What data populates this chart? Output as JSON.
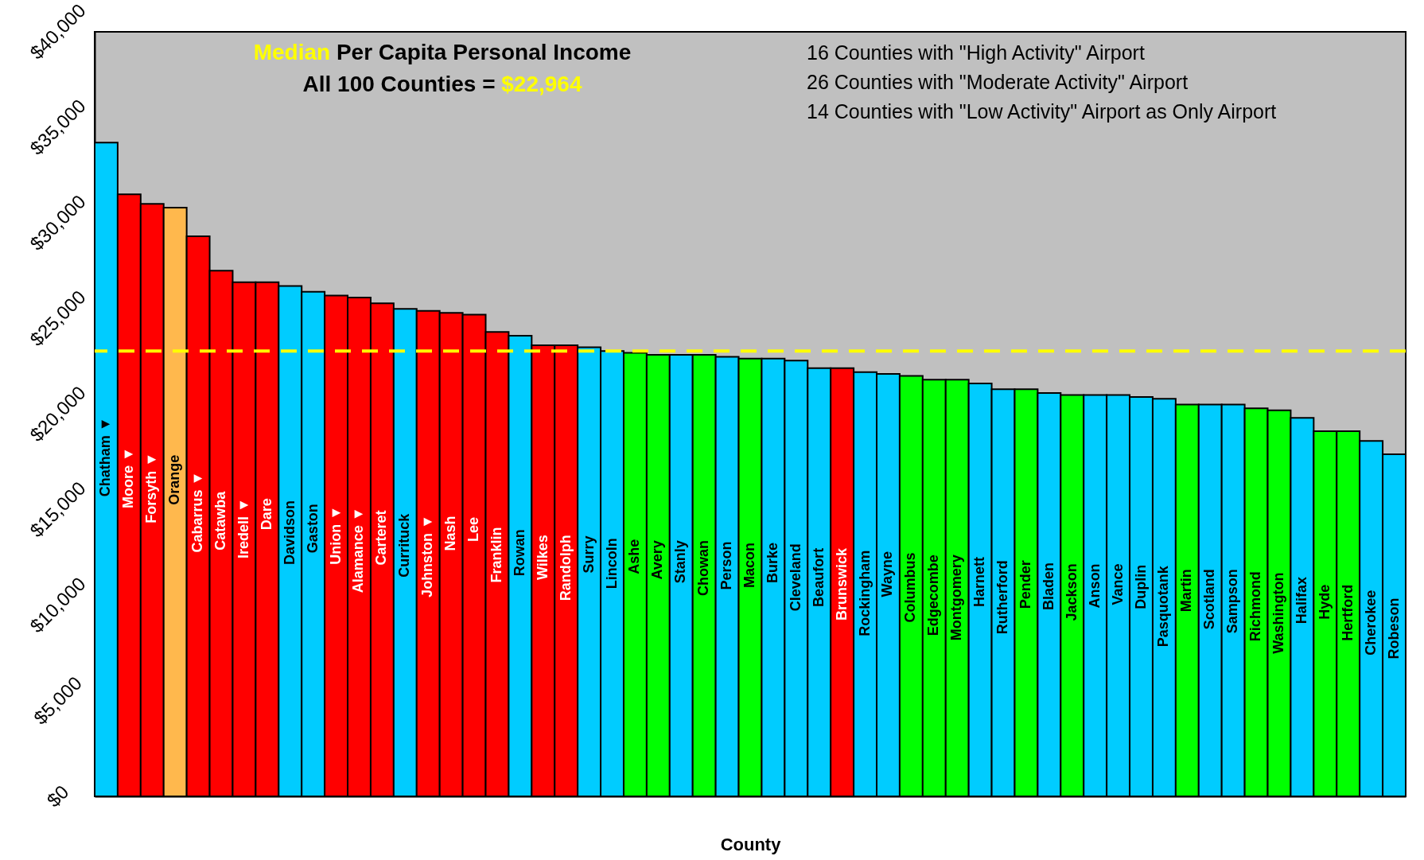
{
  "chart_data": {
    "type": "bar",
    "title": "Median Per Capita Personal Income",
    "subtitle": "All 100 Counties = $22,964",
    "xlabel": "County",
    "annotations": [
      "16 Counties with \"High Activity\" Airport",
      "26 Counties with \"Moderate Activity\" Airport",
      "14 Counties with \"Low Activity\" Airport as Only Airport"
    ],
    "categories": [
      "Chatham ▼",
      "Moore ▼",
      "Forsyth ▼",
      "Orange",
      "Cabarrus ▼",
      "Catawba",
      "Iredell ▼",
      "Dare",
      "Davidson",
      "Gaston",
      "Union ▼",
      "Alamance ▼",
      "Carteret",
      "Currituck",
      "Johnston ▼",
      "Nash",
      "Lee",
      "Franklin",
      "Rowan",
      "Wilkes",
      "Randolph",
      "Surry",
      "Lincoln",
      "Ashe",
      "Avery",
      "Stanly",
      "Chowan",
      "Person",
      "Macon",
      "Burke",
      "Cleveland",
      "Beaufort",
      "Brunswick",
      "Rockingham",
      "Wayne",
      "Columbus",
      "Edgecombe",
      "Montgomery",
      "Harnett",
      "Rutherford",
      "Pender",
      "Bladen",
      "Jackson",
      "Anson",
      "Vance",
      "Duplin",
      "Pasquotank",
      "Martin",
      "Scotland",
      "Sampson",
      "Richmond",
      "Washington",
      "Halifax",
      "Hyde",
      "Hertford",
      "Cherokee",
      "Robeson"
    ],
    "values": [
      34200,
      31500,
      31000,
      30800,
      29300,
      27500,
      26900,
      26900,
      26700,
      26400,
      26200,
      26100,
      25800,
      25500,
      25400,
      25300,
      25200,
      24300,
      24100,
      23600,
      23600,
      23500,
      23300,
      23200,
      23100,
      23100,
      23100,
      23000,
      22900,
      22900,
      22800,
      22400,
      22400,
      22200,
      22100,
      22000,
      21800,
      21800,
      21600,
      21300,
      21300,
      21100,
      21000,
      21000,
      21000,
      20900,
      20800,
      20500,
      20500,
      20500,
      20300,
      20200,
      19800,
      19100,
      19100,
      18600,
      17900
    ],
    "colors": [
      "#00ccff",
      "#ff0000",
      "#ff0000",
      "#ffb84d",
      "#ff0000",
      "#ff0000",
      "#ff0000",
      "#ff0000",
      "#00ccff",
      "#00ccff",
      "#ff0000",
      "#ff0000",
      "#ff0000",
      "#00ccff",
      "#ff0000",
      "#ff0000",
      "#ff0000",
      "#ff0000",
      "#00ccff",
      "#ff0000",
      "#ff0000",
      "#00ccff",
      "#00ccff",
      "#00ff00",
      "#00ff00",
      "#00ccff",
      "#00ff00",
      "#00ccff",
      "#00ff00",
      "#00ccff",
      "#00ccff",
      "#00ccff",
      "#ff0000",
      "#00ccff",
      "#00ccff",
      "#00ff00",
      "#00ff00",
      "#00ff00",
      "#00ccff",
      "#00ccff",
      "#00ff00",
      "#00ccff",
      "#00ff00",
      "#00ccff",
      "#00ccff",
      "#00ccff",
      "#00ccff",
      "#00ff00",
      "#00ccff",
      "#00ccff",
      "#00ff00",
      "#00ff00",
      "#00ccff",
      "#00ff00",
      "#00ff00",
      "#00ccff",
      "#00ccff"
    ],
    "ylim": [
      0,
      40000
    ],
    "yticks": [
      {
        "value": 0,
        "label": "$0"
      },
      {
        "value": 5000,
        "label": "$5,000"
      },
      {
        "value": 10000,
        "label": "$10,000"
      },
      {
        "value": 15000,
        "label": "$15,000"
      },
      {
        "value": 20000,
        "label": "$20,000"
      },
      {
        "value": 25000,
        "label": "$25,000"
      },
      {
        "value": 30000,
        "label": "$30,000"
      },
      {
        "value": 35000,
        "label": "$35,000"
      },
      {
        "value": 40000,
        "label": "$40,000"
      }
    ],
    "ref_lines": [
      {
        "axis": "y",
        "value": 23300,
        "color": "#ffff00",
        "line_style": "dashed"
      }
    ],
    "tick_labels": "y"
  }
}
